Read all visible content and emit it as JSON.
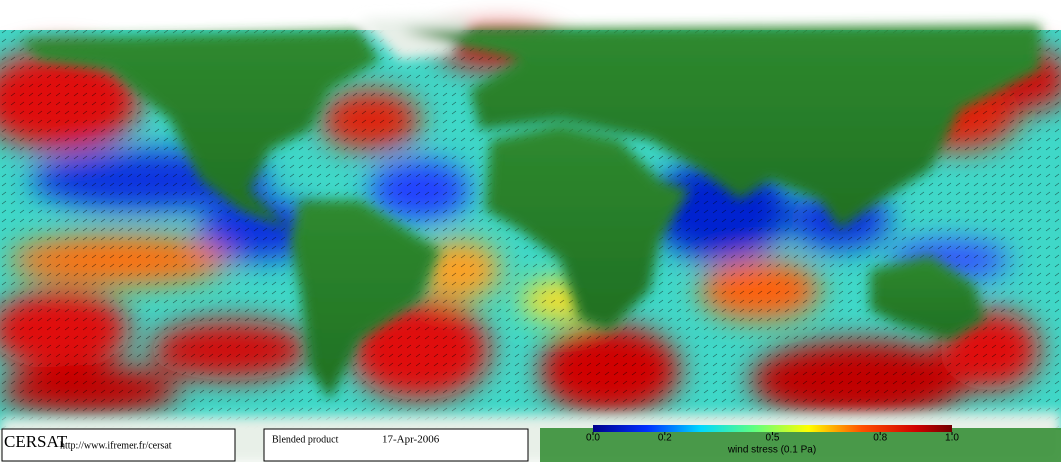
{
  "footer": {
    "brand": "CERSAT",
    "url": "http://www.ifremer.fr/cersat",
    "product": "Blended product",
    "date": "17-Apr-2006"
  },
  "colorbar": {
    "label": "wind stress (0.1 Pa)",
    "lim": [
      0,
      1
    ],
    "ticks": [
      {
        "value": 0,
        "label": "0.0"
      },
      0.2,
      0.5,
      0.8,
      {
        "value": 1,
        "label": "1.0"
      }
    ]
  }
}
